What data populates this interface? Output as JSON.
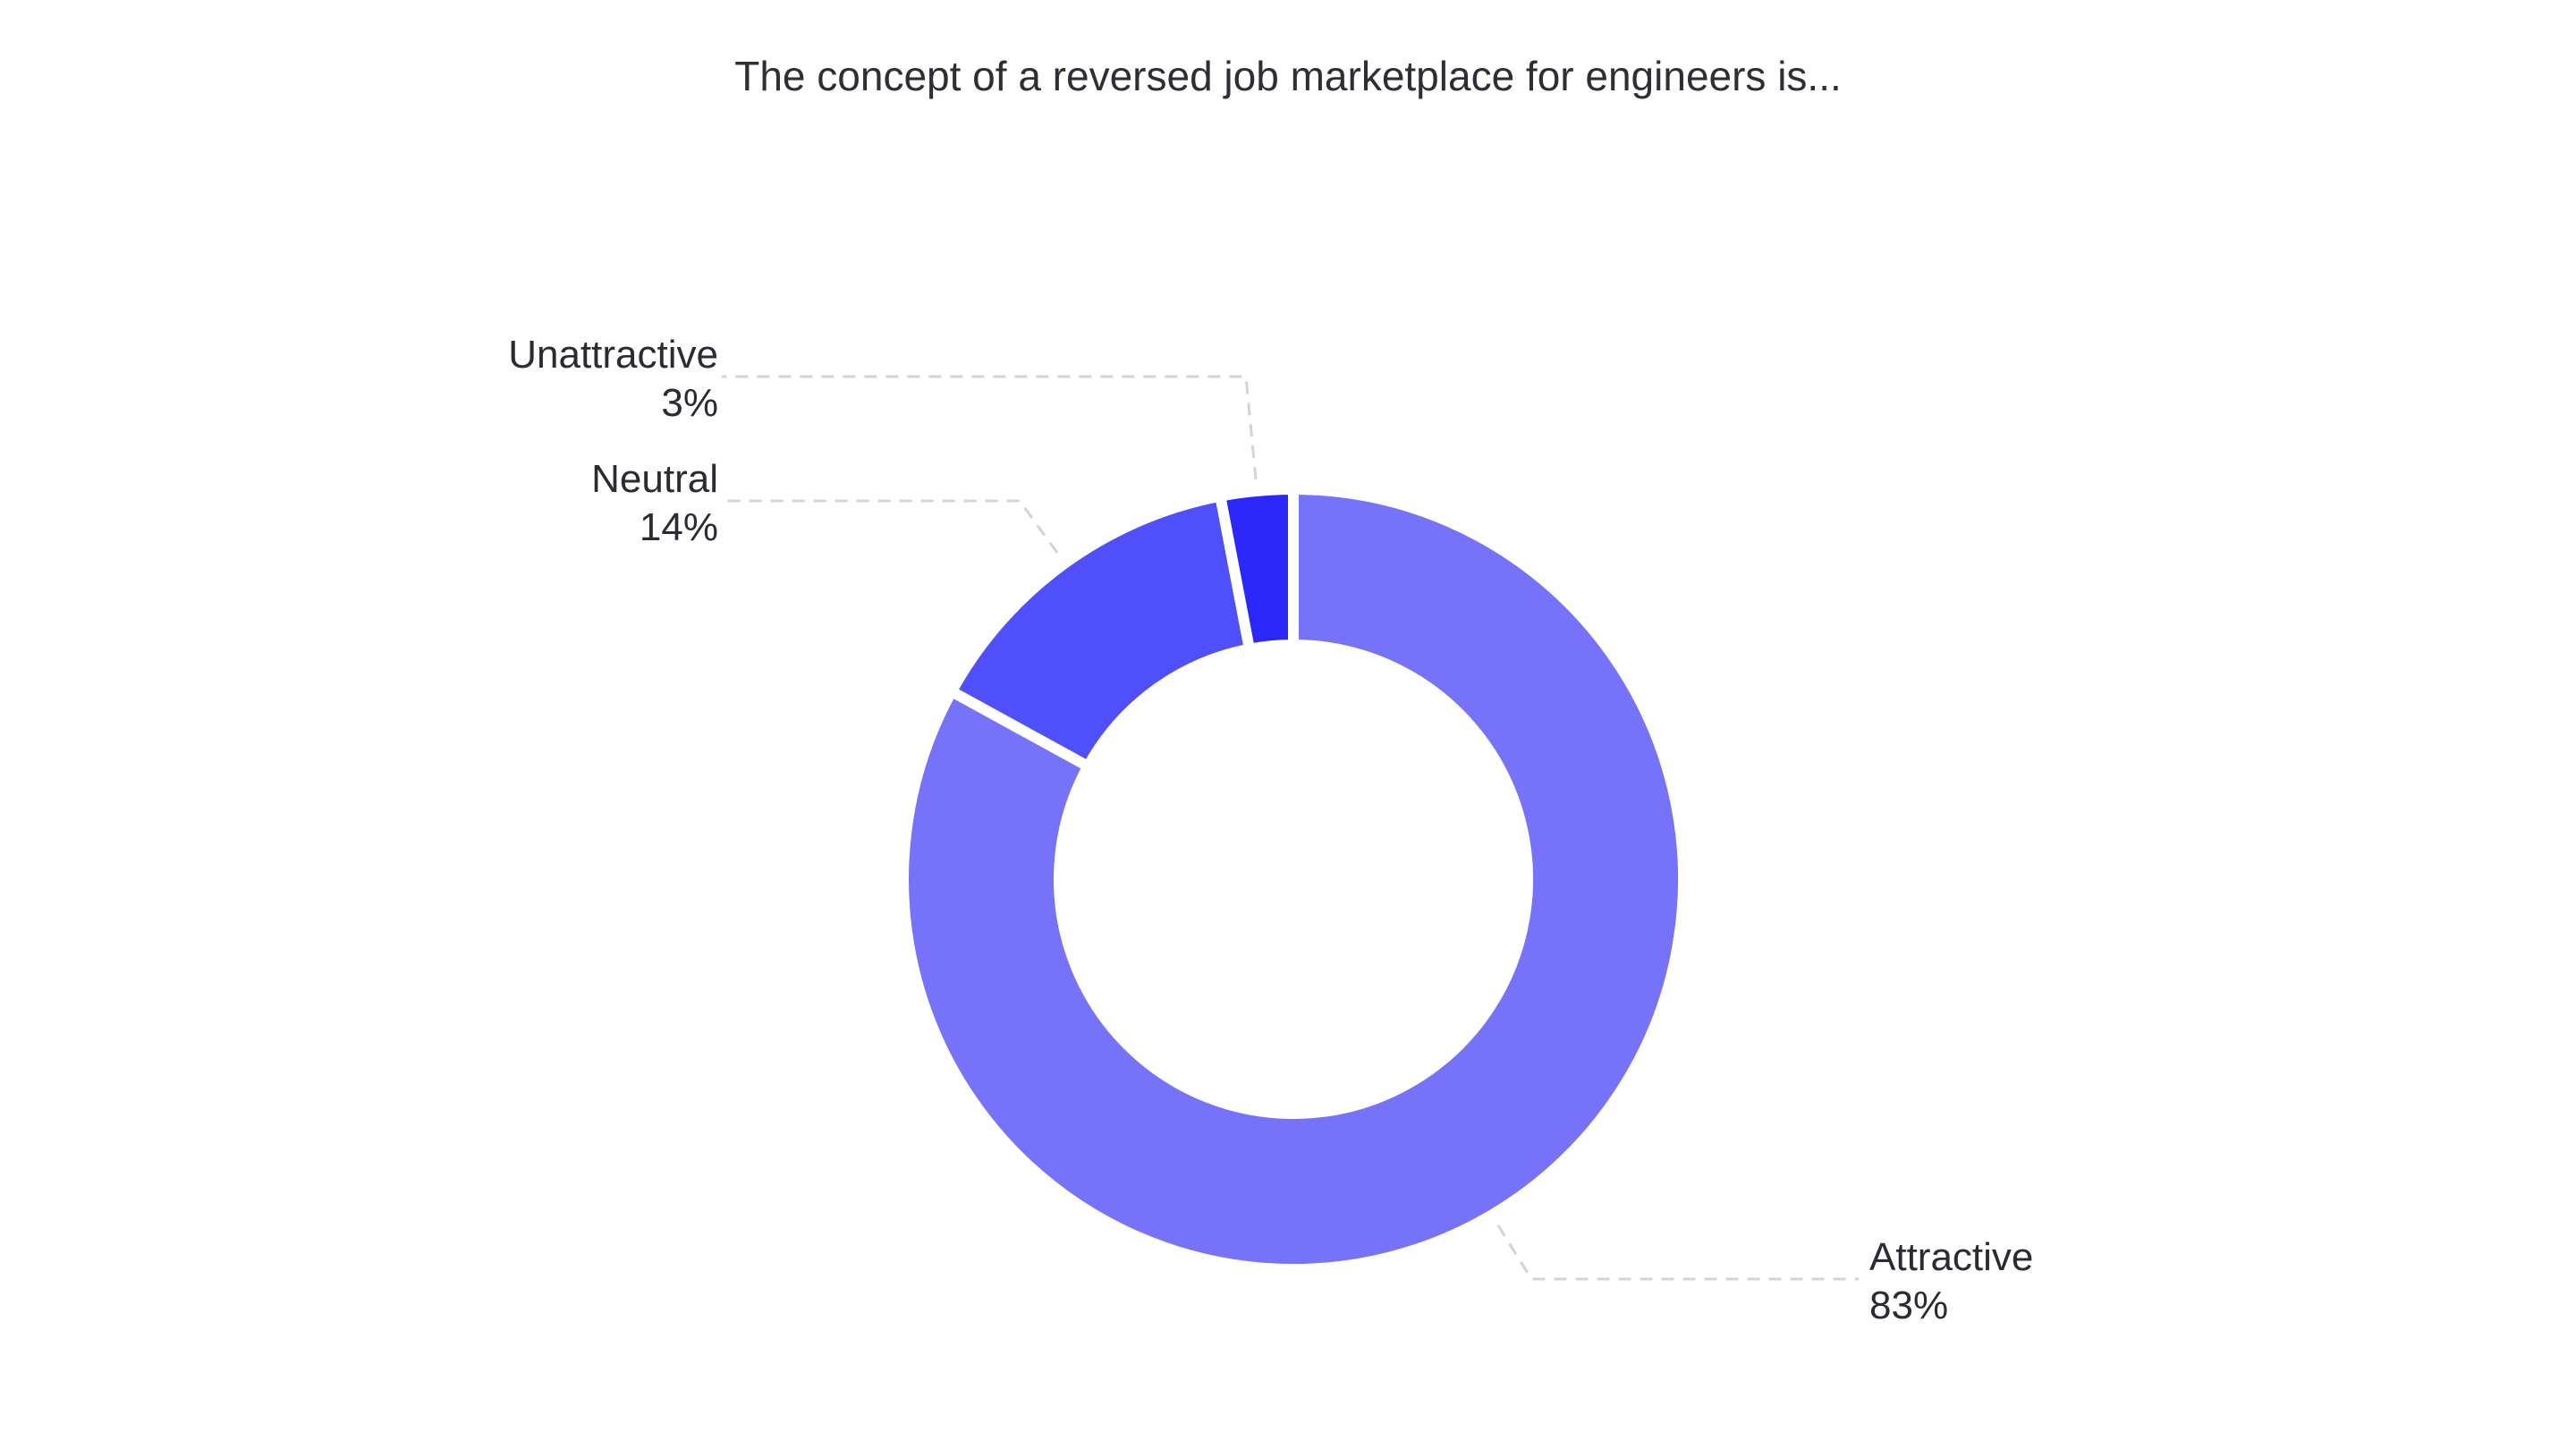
{
  "chart_data": {
    "type": "pie",
    "variant": "donut",
    "title": "The concept of a reversed job marketplace for engineers is...",
    "categories": [
      "Attractive",
      "Neutral",
      "Unattractive"
    ],
    "values": [
      83,
      14,
      3
    ],
    "value_labels": [
      "83%",
      "14%",
      "3%"
    ],
    "colors": [
      "#7673FA",
      "#4F4FFB",
      "#2B28F9"
    ],
    "legend": "none (callout labels)"
  }
}
